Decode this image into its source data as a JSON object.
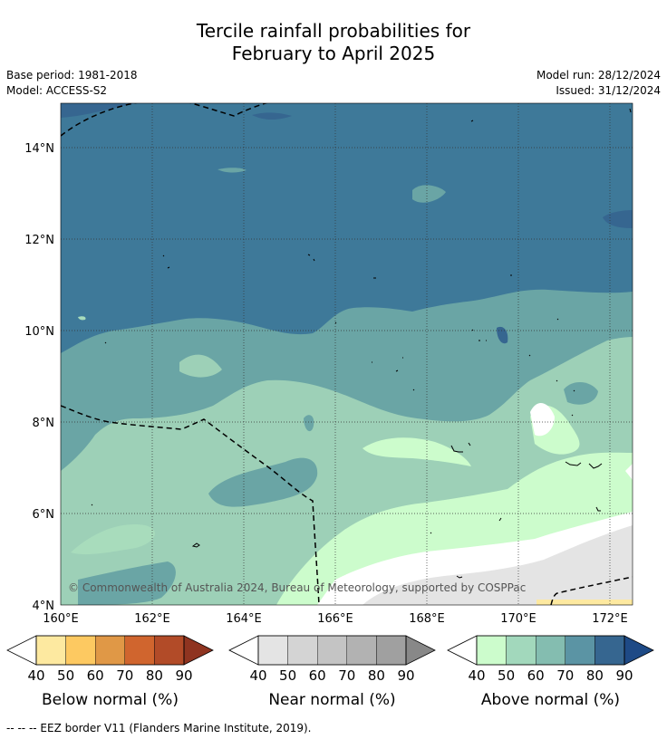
{
  "title": {
    "line1": "Tercile rainfall probabilities for",
    "line2": "February to April 2025"
  },
  "meta": {
    "base_period": "Base period: 1981-2018",
    "model": "Model: ACCESS-S2",
    "model_run": "Model run: 28/12/2024",
    "issued": "Issued: 31/12/2024"
  },
  "map": {
    "lat_labels": [
      "14°N",
      "12°N",
      "10°N",
      "8°N",
      "6°N",
      "4°N"
    ],
    "lon_labels": [
      "160°E",
      "162°E",
      "164°E",
      "166°E",
      "168°E",
      "170°E",
      "172°E"
    ],
    "copyright": "© Commonwealth of Australia 2024, Bureau of Meteorology, supported by COSPPac"
  },
  "colorbars": [
    {
      "label": "Below normal (%)",
      "ticks": [
        "40",
        "50",
        "60",
        "70",
        "80",
        "90"
      ],
      "colors": [
        "#fde9a0",
        "#fdc961",
        "#e09846",
        "#d0652e",
        "#b24b28",
        "#8f3420"
      ]
    },
    {
      "label": "Near normal (%)",
      "ticks": [
        "40",
        "50",
        "60",
        "70",
        "80",
        "90"
      ],
      "colors": [
        "#e4e4e4",
        "#d4d4d4",
        "#c4c4c4",
        "#b2b2b2",
        "#a0a0a0",
        "#888888"
      ]
    },
    {
      "label": "Above normal (%)",
      "ticks": [
        "40",
        "50",
        "60",
        "70",
        "80",
        "90"
      ],
      "colors": [
        "#ccfccc",
        "#a2d8bc",
        "#84bdb0",
        "#5b94a4",
        "#366690",
        "#1e4a86"
      ]
    }
  ],
  "footnote": "--  --  -- EEZ border V11 (Flanders Marine Institute, 2019)."
}
